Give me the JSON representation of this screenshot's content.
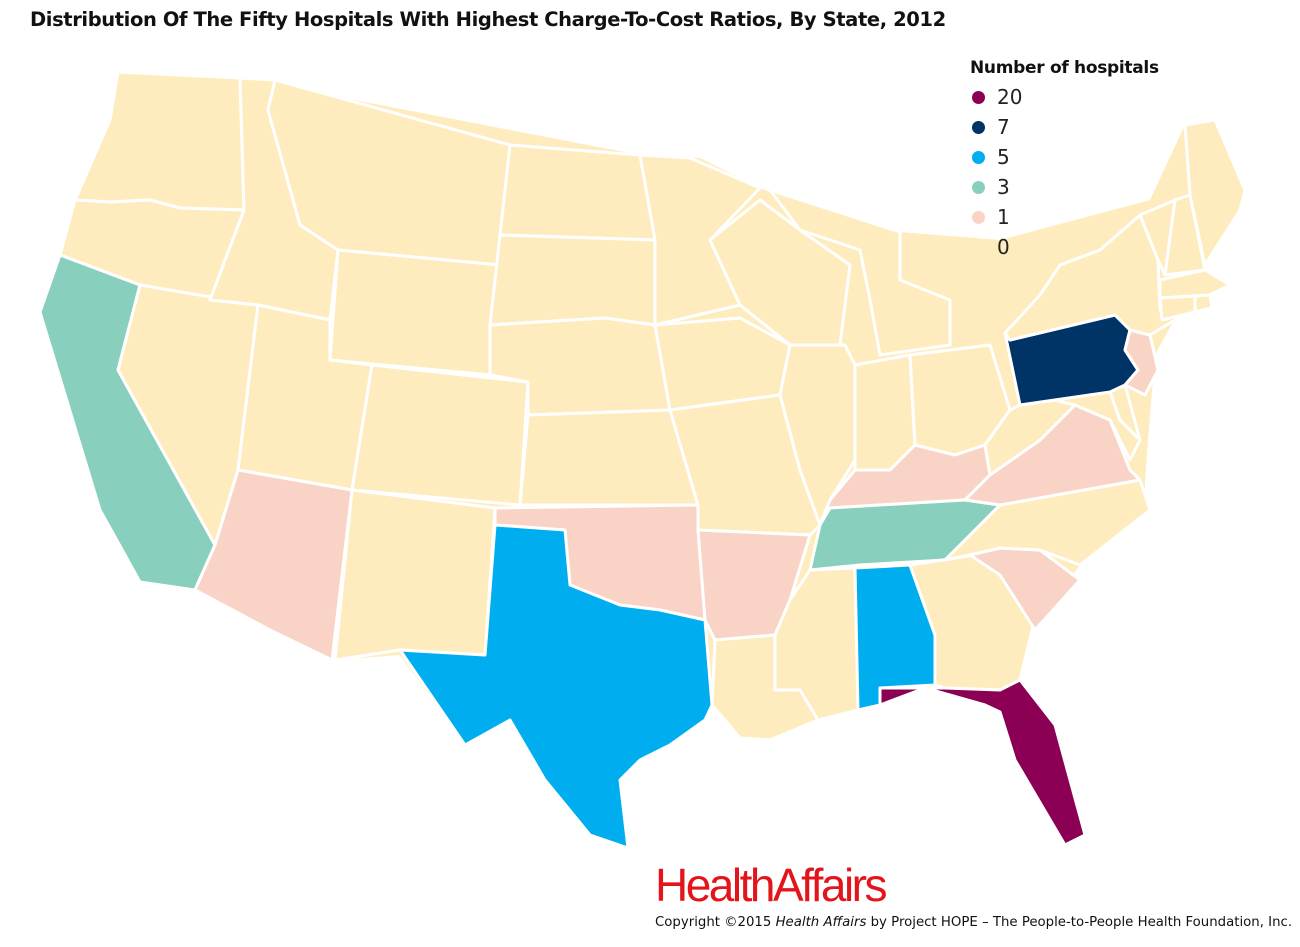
{
  "title": "Distribution Of The Fifty Hospitals With Highest Charge-To-Cost Ratios, By State, 2012",
  "legend": {
    "title": "Number of hospitals",
    "items": [
      {
        "label": "20",
        "color": "#8b0055"
      },
      {
        "label": "7",
        "color": "#003366"
      },
      {
        "label": "5",
        "color": "#00aeef"
      },
      {
        "label": "3",
        "color": "#88cfbd"
      },
      {
        "label": "1",
        "color": "#f9d4c6"
      },
      {
        "label": "0",
        "color": "#feecbe"
      }
    ]
  },
  "state_values": {
    "FL": 20,
    "PA": 7,
    "TX": 5,
    "AL": 5,
    "CA": 3,
    "TN": 3,
    "AZ": 1,
    "OK": 1,
    "AR": 1,
    "KY": 1,
    "VA": 1,
    "SC": 1,
    "NJ": 1
  },
  "brand": {
    "name": "HealthAffairs"
  },
  "copyright": {
    "prefix": "Copyright ©2015 ",
    "publication": "Health Affairs",
    "suffix": " by Project HOPE – The People-to-People Health Foundation, Inc."
  }
}
